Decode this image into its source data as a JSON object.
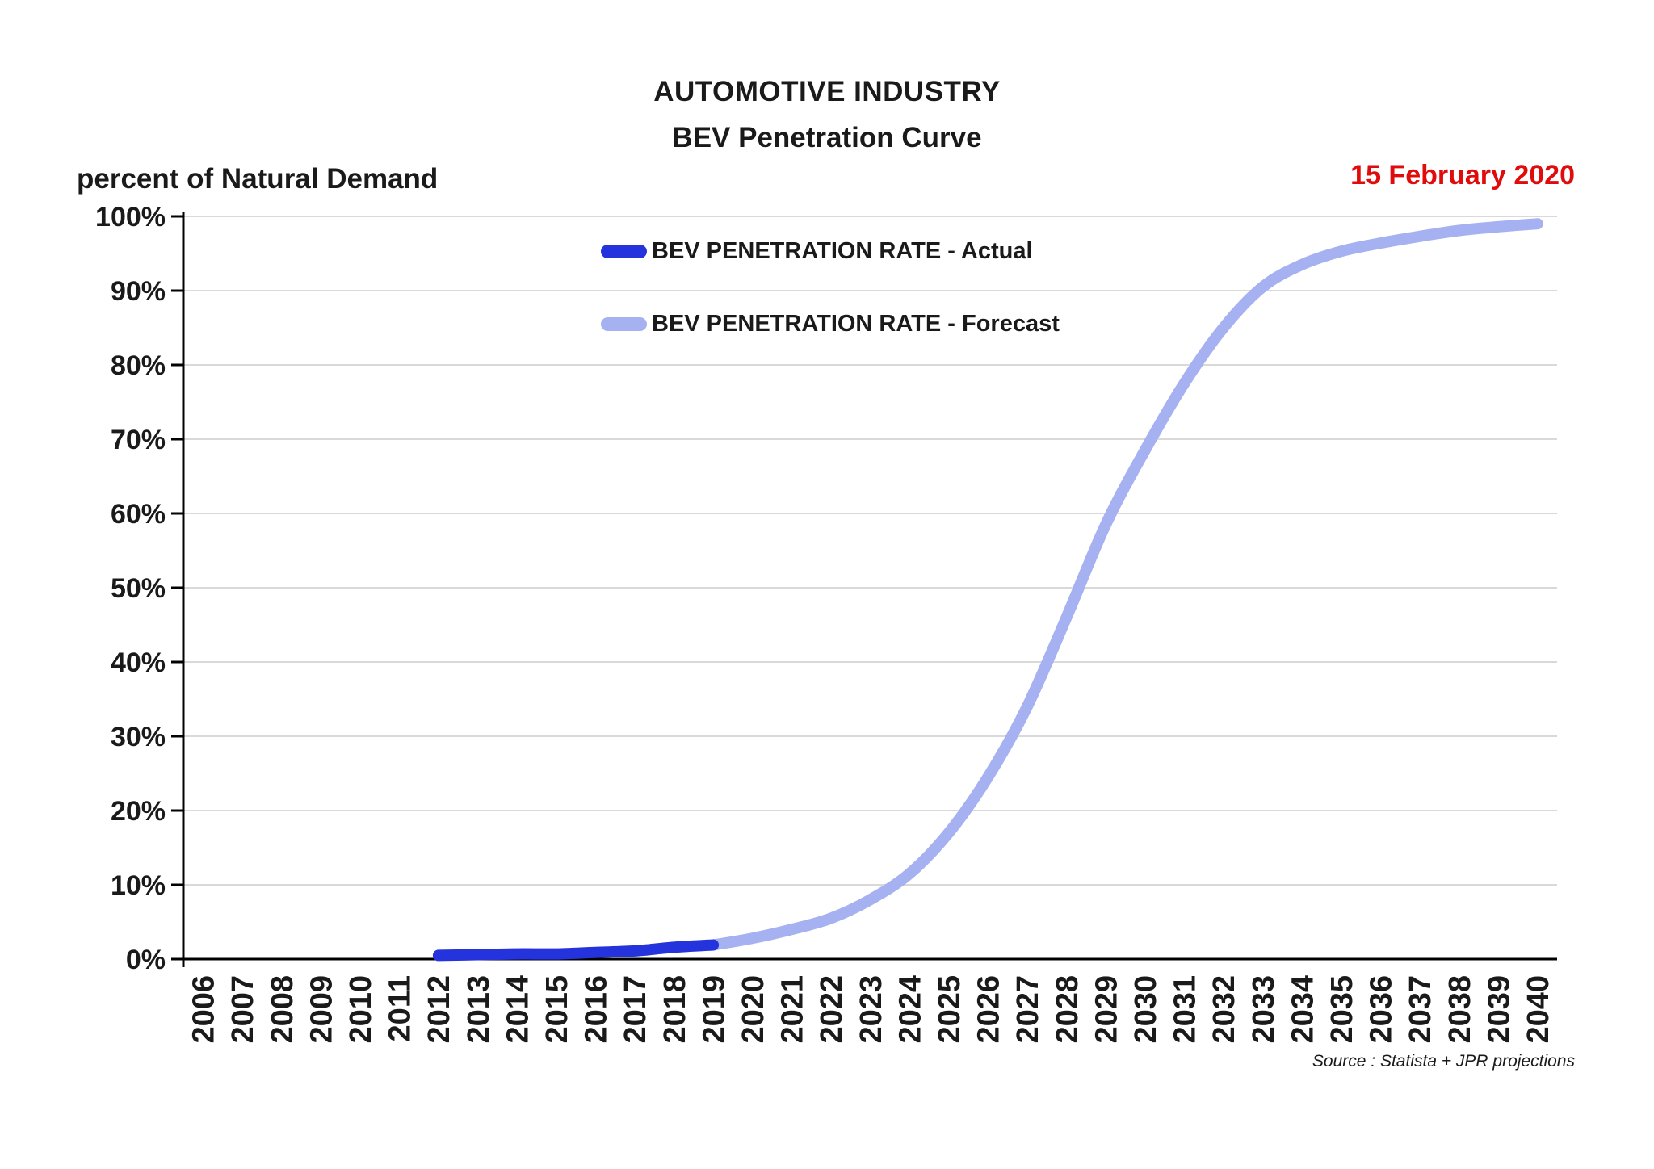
{
  "header": {
    "title_line1": "AUTOMOTIVE INDUSTRY",
    "title_line2": "BEV Penetration Curve",
    "date_label": "15 February 2020",
    "date_color": "#e00b0b"
  },
  "footer": {
    "source": "Source : Statista + JPR projections"
  },
  "chart_data": {
    "type": "line",
    "title": "AUTOMOTIVE INDUSTRY",
    "subtitle": "BEV Penetration Curve",
    "ylabel": "percent of Natural Demand",
    "xlabel": "",
    "ylim": [
      0,
      100
    ],
    "ytick_step": 10,
    "ytick_suffix": "%",
    "grid": "horizontal",
    "legend_position": "inside-top-left",
    "gridline_color": "#d9d9d9",
    "axis_color": "#000000",
    "x_labels": [
      "2006",
      "2007",
      "2008",
      "2009",
      "2010",
      "2011",
      "2012",
      "2013",
      "2014",
      "2015",
      "2016",
      "2017",
      "2018",
      "2019",
      "2020",
      "2021",
      "2022",
      "2023",
      "2024",
      "2025",
      "2026",
      "2027",
      "2028",
      "2029",
      "2030",
      "2031",
      "2032",
      "2033",
      "2034",
      "2035",
      "2036",
      "2037",
      "2038",
      "2039",
      "2040"
    ],
    "x_range": [
      2006,
      2040
    ],
    "series": [
      {
        "name": "BEV PENETRATION RATE - Actual",
        "color": "#2433db",
        "x": [
          2012,
          2013,
          2014,
          2015,
          2016,
          2017,
          2018,
          2019
        ],
        "y": [
          0.5,
          0.6,
          0.7,
          0.7,
          0.9,
          1.1,
          1.6,
          1.9
        ]
      },
      {
        "name": "BEV PENETRATION RATE - Forecast",
        "color": "#a6b1f1",
        "x": [
          2019,
          2020,
          2021,
          2022,
          2023,
          2024,
          2025,
          2026,
          2027,
          2028,
          2029,
          2030,
          2031,
          2032,
          2033,
          2034,
          2035,
          2036,
          2037,
          2038,
          2039,
          2040
        ],
        "y": [
          1.9,
          2.8,
          4.0,
          5.5,
          8.0,
          11.5,
          17.0,
          24.5,
          34.0,
          46.0,
          58.5,
          68.5,
          77.5,
          85.0,
          90.5,
          93.5,
          95.3,
          96.4,
          97.3,
          98.1,
          98.6,
          99.0
        ]
      }
    ]
  }
}
